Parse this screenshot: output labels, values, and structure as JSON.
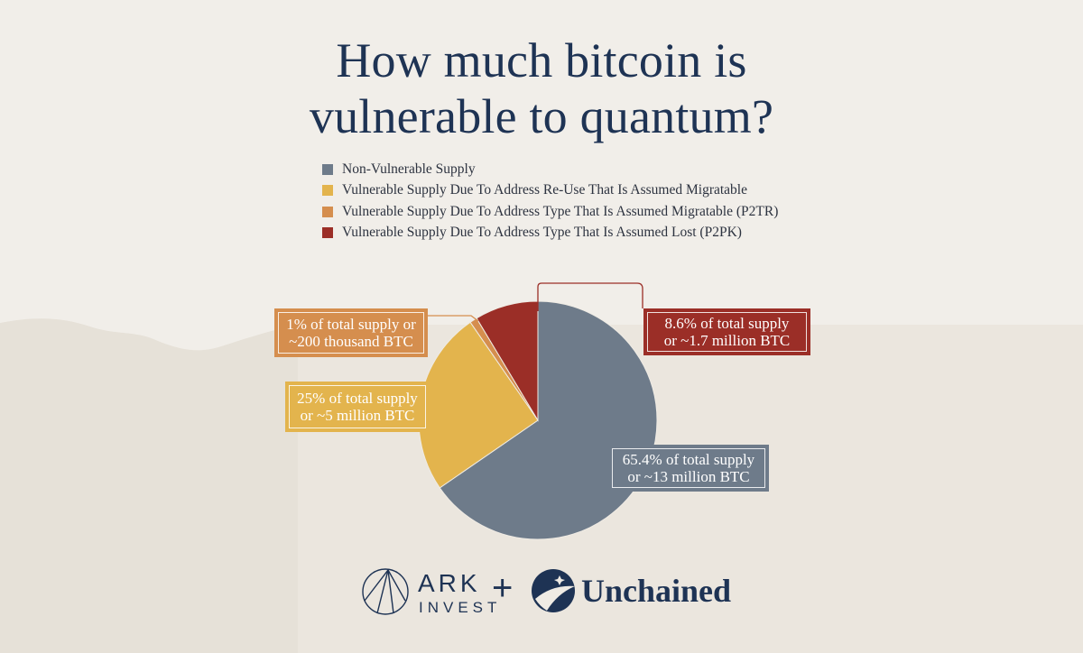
{
  "title_lines": [
    "How much bitcoin is",
    "vulnerable to quantum?"
  ],
  "chart_data": {
    "type": "pie",
    "start_angle_deg": 0,
    "direction": "clockwise",
    "slices": [
      {
        "label": "Non-Vulnerable Supply",
        "value": 65.4,
        "color": "#6e7b8a",
        "callout": [
          "65.4% of total supply",
          "or ~13 million BTC"
        ]
      },
      {
        "label": "Vulnerable Supply Due To Address Re-Use That Is Assumed Migratable",
        "value": 25,
        "color": "#e3b44d",
        "callout": [
          "25% of total supply",
          "or ~5 million BTC"
        ]
      },
      {
        "label": "Vulnerable Supply Due To Address Type That Is Assumed Migratable (P2TR)",
        "value": 1,
        "color": "#d58e4e",
        "callout": [
          "1% of total supply or",
          "~200 thousand BTC"
        ]
      },
      {
        "label": "Vulnerable Supply Due To Address Type That Is Assumed Lost (P2PK)",
        "value": 8.6,
        "color": "#9b2e27",
        "callout": [
          "8.6% of total supply",
          "or ~1.7 million BTC"
        ]
      }
    ]
  },
  "logos": {
    "ark_line1": "ARK",
    "ark_line2": "INVEST",
    "plus": "+",
    "unchained": "Unchained"
  }
}
